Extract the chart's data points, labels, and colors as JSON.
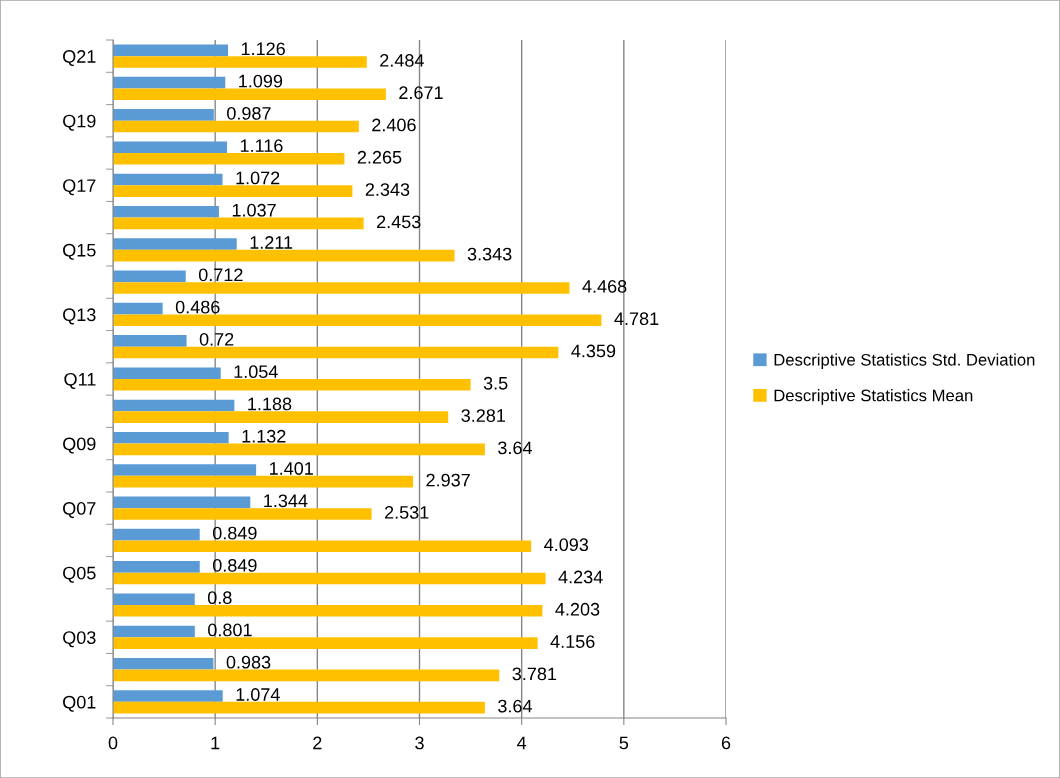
{
  "chart_data": {
    "type": "bar",
    "orientation": "horizontal",
    "categories": [
      "Q21",
      null,
      "Q19",
      null,
      "Q17",
      null,
      "Q15",
      null,
      "Q13",
      null,
      "Q11",
      null,
      "Q09",
      null,
      "Q07",
      null,
      "Q05",
      null,
      "Q03",
      null,
      "Q01"
    ],
    "series": [
      {
        "name": "Descriptive Statistics Std. Deviation",
        "color": "#5b9bd5",
        "values": [
          1.126,
          1.099,
          0.987,
          1.116,
          1.072,
          1.037,
          1.211,
          0.712,
          0.486,
          0.72,
          1.054,
          1.188,
          1.132,
          1.401,
          1.344,
          0.849,
          0.849,
          0.8,
          0.801,
          0.983,
          1.074
        ]
      },
      {
        "name": "Descriptive Statistics Mean",
        "color": "#ffc000",
        "values": [
          2.484,
          2.671,
          2.406,
          2.265,
          2.343,
          2.453,
          3.343,
          4.468,
          4.781,
          4.359,
          3.5,
          3.281,
          3.64,
          2.937,
          2.531,
          4.093,
          4.234,
          4.203,
          4.156,
          3.781,
          3.64
        ]
      }
    ],
    "xlim": [
      0,
      6
    ],
    "xticks": [
      0,
      1,
      2,
      3,
      4,
      5,
      6
    ],
    "grid": "x",
    "legend": "right",
    "data_labels": true
  }
}
